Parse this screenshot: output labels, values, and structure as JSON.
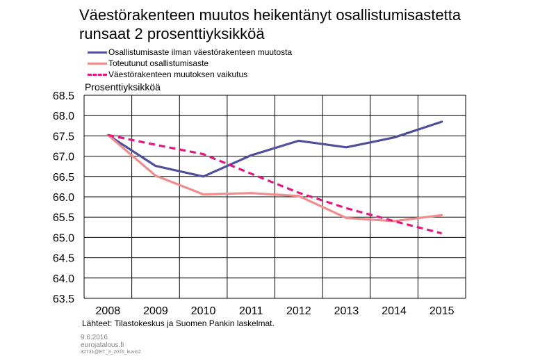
{
  "header": {
    "title_line1": "Väestörakenteen muutos heikentänyt osallistumisastetta",
    "title_line2": "runsaat 2 prosenttiyksikköä"
  },
  "footer": {
    "source": "Lähteet: Tilastokeskus ja Suomen Pankin laskelmat.",
    "date": "9.6.2016",
    "site": "eurojatalous.fi",
    "code": "32731@ET_3_2016_kuvio2"
  },
  "chart_data": {
    "type": "line",
    "ylabel": "Prosenttiyksikköä",
    "xlabel": "",
    "x": [
      "2008",
      "2009",
      "2010",
      "2011",
      "2012",
      "2013",
      "2014",
      "2015"
    ],
    "ylim": [
      63.5,
      68.5
    ],
    "yticks": [
      "63.5",
      "64.0",
      "64.5",
      "65.0",
      "65.5",
      "66.0",
      "66.5",
      "67.0",
      "67.5",
      "68.0",
      "68.5"
    ],
    "grid": true,
    "legend_position": "top-left",
    "series": [
      {
        "name": "Osallistumisaste ilman väestörakenteen muutosta",
        "color": "#4f4f9b",
        "dash": "solid",
        "values": [
          67.52,
          66.76,
          66.5,
          67.02,
          67.38,
          67.22,
          67.46,
          67.85
        ]
      },
      {
        "name": "Toteutunut osallistumisaste",
        "color": "#f08c8c",
        "dash": "solid",
        "values": [
          67.52,
          66.52,
          66.06,
          66.09,
          66.02,
          65.48,
          65.4,
          65.55
        ]
      },
      {
        "name": "Väestörakenteen muutoksen vaikutus",
        "color": "#e0197d",
        "dash": "dashed",
        "values": [
          67.52,
          67.28,
          67.05,
          66.57,
          66.1,
          65.72,
          65.4,
          65.1
        ]
      }
    ]
  }
}
